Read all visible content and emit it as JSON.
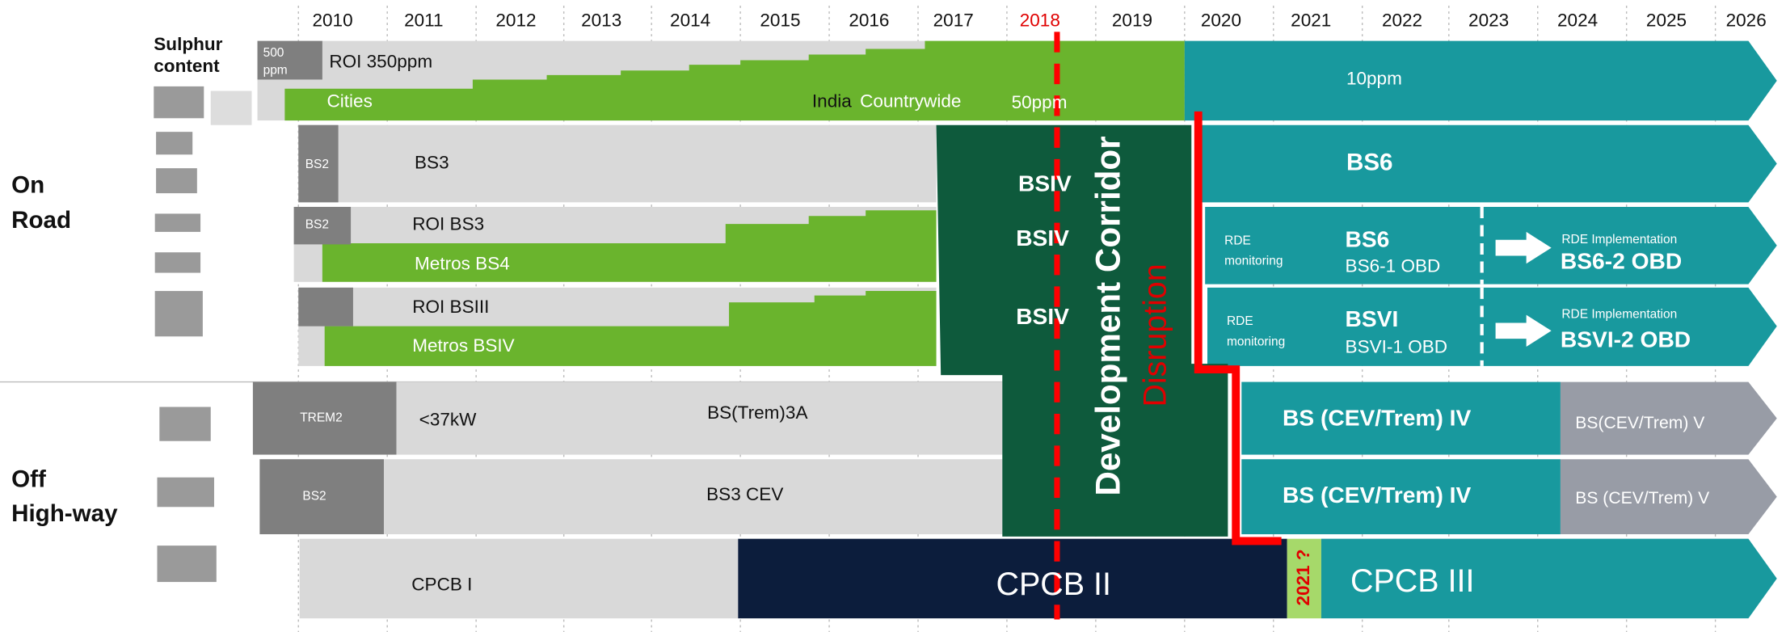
{
  "header": {
    "years": [
      "2010",
      "2011",
      "2012",
      "2013",
      "2014",
      "2015",
      "2016",
      "2017",
      "2018",
      "2019",
      "2020",
      "2021",
      "2022",
      "2023",
      "2024",
      "2025",
      "2026"
    ]
  },
  "sections": {
    "on_road": [
      "On",
      "Road"
    ],
    "off_highway": [
      "Off",
      "High-way"
    ]
  },
  "sulphur": {
    "label": [
      "Sulphur",
      "content"
    ],
    "start": [
      "500",
      "ppm"
    ],
    "roi": "ROI 350ppm",
    "cities": "Cities",
    "india": "India",
    "countrywide": "Countrywide",
    "low": "50ppm",
    "future": "10ppm"
  },
  "two_wheeler": {
    "old": "BS2",
    "current": "BS3",
    "corridor": "BSIV",
    "future": "BS6"
  },
  "cars": {
    "old": "BS2",
    "roi": "ROI BS3",
    "metros": "Metros BS4",
    "corridor": "BSIV",
    "rde": [
      "RDE",
      "monitoring"
    ],
    "future": "BS6",
    "obd1": "BS6-1 OBD",
    "rde_impl": "RDE  Implementation",
    "obd2": "BS6-2 OBD"
  },
  "trucks": {
    "roi": "ROI BSIII",
    "metros": "Metros BSIV",
    "corridor": "BSIV",
    "rde": [
      "RDE",
      "monitoring"
    ],
    "future": "BSVI",
    "obd1": "BSVI-1 OBD",
    "rde_impl": "RDE Implementation",
    "obd2": "BSVI-2 OBD"
  },
  "tractors": {
    "old": "TREM2",
    "range": "<37kW",
    "current": "BS(Trem)3A",
    "future": "BS (CEV/Trem) IV",
    "later": "BS(CEV/Trem) V"
  },
  "construction": {
    "old": "BS2",
    "current": "BS3 CEV",
    "future": "BS (CEV/Trem) IV",
    "later": "BS (CEV/Trem) V"
  },
  "gensets": {
    "first": "CPCB I",
    "second": "CPCB II",
    "marker": "2021 ?",
    "third": "CPCB III"
  },
  "corridor": {
    "title": "Development Corridor",
    "subtitle": "Disruption"
  }
}
